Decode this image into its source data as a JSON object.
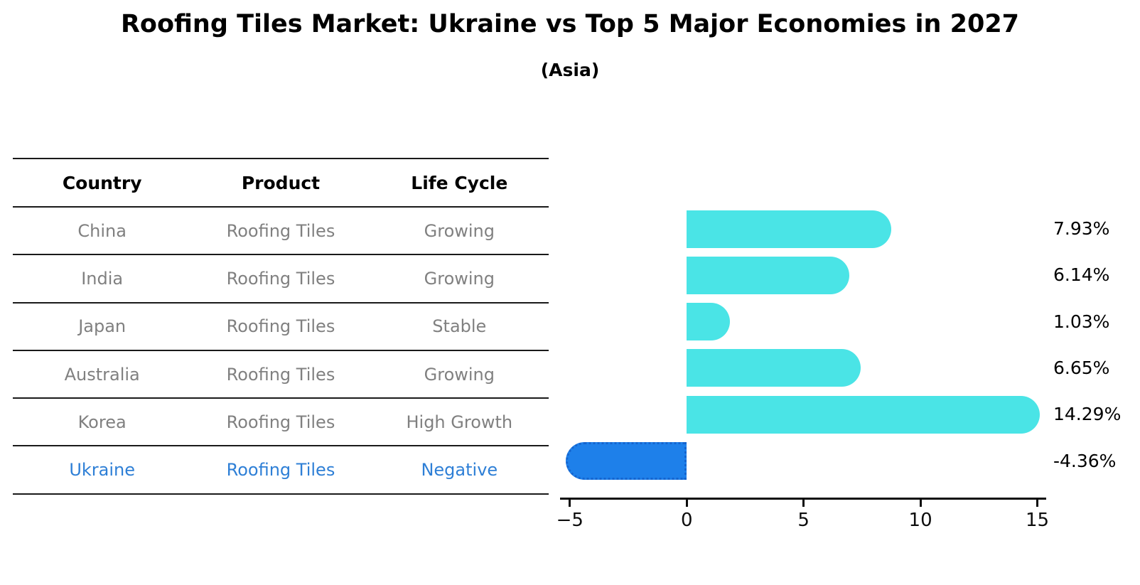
{
  "title": "Roofing Tiles Market: Ukraine vs Top 5 Major Economies in 2027",
  "subtitle": "(Asia)",
  "table": {
    "headers": [
      "Country",
      "Product",
      "Life Cycle"
    ],
    "rows": [
      {
        "country": "China",
        "product": "Roofing Tiles",
        "life_cycle": "Growing",
        "highlight": false
      },
      {
        "country": "India",
        "product": "Roofing Tiles",
        "life_cycle": "Growing",
        "highlight": false
      },
      {
        "country": "Japan",
        "product": "Roofing Tiles",
        "life_cycle": "Stable",
        "highlight": false
      },
      {
        "country": "Australia",
        "product": "Roofing Tiles",
        "life_cycle": "Growing",
        "highlight": false
      },
      {
        "country": "Korea",
        "product": "Roofing Tiles",
        "life_cycle": "High Growth",
        "highlight": false
      },
      {
        "country": "Ukraine",
        "product": "Roofing Tiles",
        "life_cycle": "Negative",
        "highlight": true
      }
    ]
  },
  "chart_data": {
    "type": "bar",
    "orientation": "horizontal",
    "title": "Roofing Tiles Market: Ukraine vs Top 5 Major Economies in 2027 (Asia)",
    "categories": [
      "China",
      "India",
      "Japan",
      "Australia",
      "Korea",
      "Ukraine"
    ],
    "values": [
      7.93,
      6.14,
      1.03,
      6.65,
      14.29,
      -4.36
    ],
    "value_labels": [
      "7.93%",
      "6.14%",
      "1.03%",
      "6.65%",
      "14.29%",
      "-4.36%"
    ],
    "xlim": [
      -5.42,
      15.38
    ],
    "x_ticks": [
      -5,
      0,
      5,
      10,
      15
    ],
    "x_tick_labels": [
      "−5",
      "0",
      "5",
      "10",
      "15"
    ],
    "grid": false,
    "legend": "none",
    "xlabel": "",
    "ylabel": "",
    "bar_color": "#4AE4E6",
    "highlight_color": "#1E80EA",
    "highlight_edge_color": "#1565CF",
    "highlight_index": 5
  },
  "colors": {
    "background": "#ffffff",
    "table_line": "#1a1a1a",
    "table_text": "#808080",
    "table_highlight_text": "#2E7FD6",
    "axis": "#0d0d0d",
    "label_text": "#000000"
  }
}
